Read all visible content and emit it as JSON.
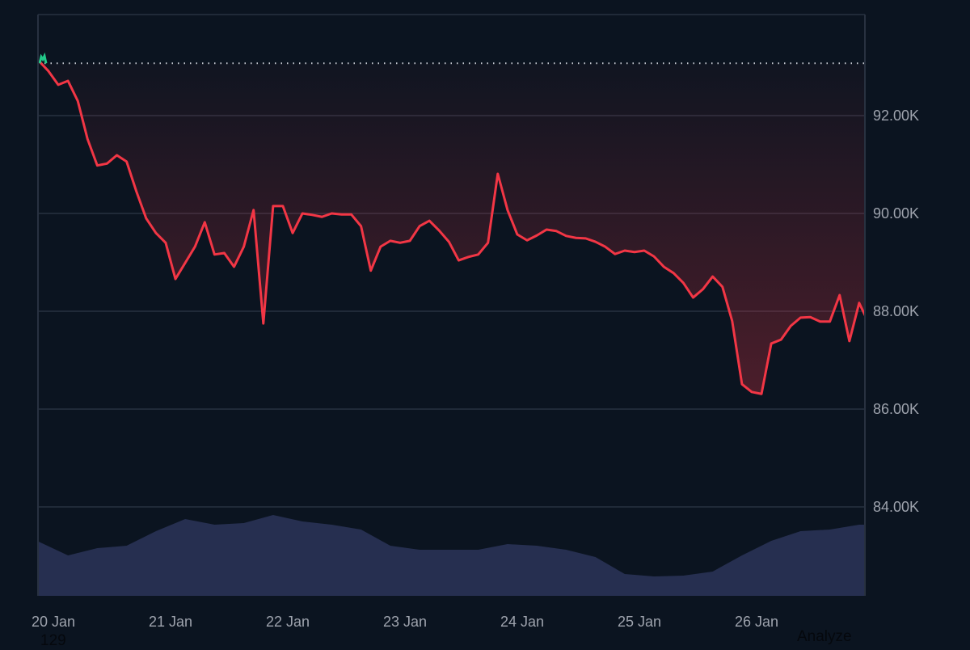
{
  "chart_data": {
    "type": "line",
    "title": "",
    "xlabel": "",
    "ylabel": "",
    "ylim": [
      82500,
      94000
    ],
    "grid": true,
    "baseline": 93070,
    "colors": {
      "background": "#0b1420",
      "grid": "#283140",
      "down": "#f23645",
      "up": "#22c98a",
      "volume": "#262f50",
      "axis_text": "#9ea3ad"
    },
    "x_ticks": [
      "20 Jan",
      "21 Jan",
      "22 Jan",
      "23 Jan",
      "24 Jan",
      "25 Jan",
      "26 Jan"
    ],
    "y_ticks": [
      {
        "value": 84000,
        "label": "84.00K"
      },
      {
        "value": 86000,
        "label": "86.00K"
      },
      {
        "value": 88000,
        "label": "88.00K"
      },
      {
        "value": 90000,
        "label": "90.00K"
      },
      {
        "value": 92000,
        "label": "92.00K"
      }
    ],
    "x": [
      "19 Jan 21:00",
      "19 Jan 23:00",
      "20 Jan 01:00",
      "20 Jan 03:00",
      "20 Jan 05:00",
      "20 Jan 07:00",
      "20 Jan 09:00",
      "20 Jan 11:00",
      "20 Jan 13:00",
      "20 Jan 15:00",
      "20 Jan 17:00",
      "20 Jan 19:00",
      "20 Jan 21:00",
      "20 Jan 23:00",
      "21 Jan 01:00",
      "21 Jan 03:00",
      "21 Jan 05:00",
      "21 Jan 07:00",
      "21 Jan 09:00",
      "21 Jan 11:00",
      "21 Jan 13:00",
      "21 Jan 15:00",
      "21 Jan 17:00",
      "21 Jan 19:00",
      "21 Jan 21:00",
      "21 Jan 23:00",
      "22 Jan 01:00",
      "22 Jan 03:00",
      "22 Jan 05:00",
      "22 Jan 07:00",
      "22 Jan 09:00",
      "22 Jan 11:00",
      "22 Jan 13:00",
      "22 Jan 15:00",
      "22 Jan 17:00",
      "22 Jan 19:00",
      "22 Jan 21:00",
      "22 Jan 23:00",
      "23 Jan 01:00",
      "23 Jan 03:00",
      "23 Jan 05:00",
      "23 Jan 07:00",
      "23 Jan 09:00",
      "23 Jan 11:00",
      "23 Jan 13:00",
      "23 Jan 15:00",
      "23 Jan 17:00",
      "23 Jan 19:00",
      "23 Jan 21:00",
      "23 Jan 23:00",
      "24 Jan 01:00",
      "24 Jan 03:00",
      "24 Jan 05:00",
      "24 Jan 07:00",
      "24 Jan 09:00",
      "24 Jan 11:00",
      "24 Jan 13:00",
      "24 Jan 15:00",
      "24 Jan 17:00",
      "24 Jan 19:00",
      "24 Jan 21:00",
      "24 Jan 23:00",
      "25 Jan 01:00",
      "25 Jan 03:00",
      "25 Jan 05:00",
      "25 Jan 07:00",
      "25 Jan 09:00",
      "25 Jan 11:00",
      "25 Jan 13:00",
      "25 Jan 15:00",
      "25 Jan 17:00",
      "25 Jan 19:00",
      "25 Jan 21:00",
      "25 Jan 23:00",
      "26 Jan 01:00",
      "26 Jan 03:00",
      "26 Jan 05:00",
      "26 Jan 07:00",
      "26 Jan 09:00",
      "26 Jan 11:00",
      "26 Jan 13:00",
      "26 Jan 15:00",
      "26 Jan 17:00",
      "26 Jan 19:00",
      "26 Jan 21:00",
      "26 Jan 23:00"
    ],
    "series": [
      {
        "values": [
          93120,
          92910,
          92630,
          92710,
          92300,
          91520,
          90980,
          91020,
          91190,
          91060,
          90450,
          89900,
          89600,
          89400,
          88660,
          88990,
          89320,
          89820,
          89160,
          89190,
          88910,
          89320,
          90070,
          87750,
          90150,
          90150,
          89600,
          90000,
          89970,
          89930,
          90000,
          89980,
          89980,
          89740,
          88830,
          89320,
          89440,
          89400,
          89440,
          89740,
          89850,
          89650,
          89420,
          89040,
          89110,
          89160,
          89400,
          90810,
          90070,
          89570,
          89450,
          89550,
          89670,
          89640,
          89540,
          89500,
          89490,
          89420,
          89320,
          89170,
          89240,
          89210,
          89240,
          89120,
          88910,
          88780,
          88580,
          88280,
          88450,
          88710,
          88500,
          87800,
          86510,
          86350,
          86310,
          87340,
          87420,
          87700,
          87870,
          87880,
          87790,
          87790,
          88330,
          87390,
          88170,
          87750
        ]
      }
    ],
    "volume": {
      "x": [
        "19 Jan 21:00",
        "20 Jan 03:00",
        "20 Jan 09:00",
        "20 Jan 15:00",
        "20 Jan 21:00",
        "21 Jan 03:00",
        "21 Jan 09:00",
        "21 Jan 15:00",
        "21 Jan 21:00",
        "22 Jan 03:00",
        "22 Jan 09:00",
        "22 Jan 15:00",
        "22 Jan 21:00",
        "23 Jan 03:00",
        "23 Jan 09:00",
        "23 Jan 15:00",
        "23 Jan 21:00",
        "24 Jan 03:00",
        "24 Jan 09:00",
        "24 Jan 15:00",
        "24 Jan 21:00",
        "25 Jan 03:00",
        "25 Jan 09:00",
        "25 Jan 15:00",
        "25 Jan 21:00",
        "26 Jan 03:00",
        "26 Jan 09:00",
        "26 Jan 15:00",
        "26 Jan 21:00"
      ],
      "relative_values": [
        0.67,
        0.5,
        0.59,
        0.62,
        0.8,
        0.95,
        0.88,
        0.9,
        1.0,
        0.92,
        0.88,
        0.82,
        0.62,
        0.57,
        0.57,
        0.57,
        0.64,
        0.62,
        0.57,
        0.48,
        0.27,
        0.24,
        0.25,
        0.3,
        0.5,
        0.68,
        0.8,
        0.82,
        0.88
      ]
    }
  },
  "overlay": {
    "left_text": "129",
    "right_text": "Analyze"
  }
}
